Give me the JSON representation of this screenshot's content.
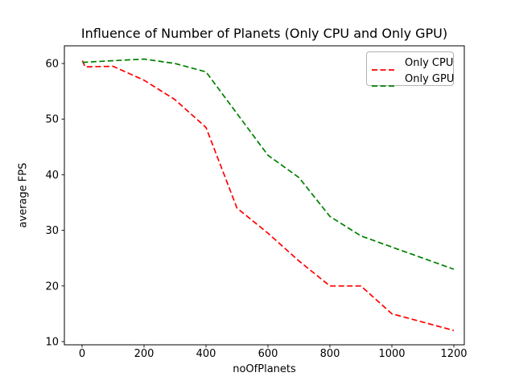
{
  "window": {
    "background": "#ffffff"
  },
  "chart_data": {
    "type": "line",
    "title": "Influence of Number of Planets (Only CPU and Only GPU)",
    "xlabel": "noOfPlanets",
    "ylabel": "average FPS",
    "x_ticks": [
      0,
      200,
      400,
      600,
      800,
      1000,
      1200
    ],
    "y_ticks": [
      10,
      20,
      30,
      40,
      50,
      60
    ],
    "xlim": [
      -57,
      1234
    ],
    "ylim": [
      9.4,
      63.2
    ],
    "grid": false,
    "legend": {
      "position": "upper right"
    },
    "series": [
      {
        "name": "Only CPU",
        "color": "#ff0000",
        "linestyle": "dashed",
        "x": [
          1,
          10,
          100,
          200,
          300,
          400,
          500,
          600,
          700,
          800,
          900,
          1000,
          1100,
          1200
        ],
        "y": [
          60.5,
          59.4,
          59.5,
          57,
          53.5,
          48.5,
          34,
          29.5,
          24.5,
          20,
          20,
          15,
          13.5,
          12
        ]
      },
      {
        "name": "Only GPU",
        "color": "#008000",
        "linestyle": "dashed",
        "x": [
          1,
          100,
          200,
          300,
          400,
          500,
          600,
          700,
          800,
          900,
          1000,
          1100,
          1200
        ],
        "y": [
          60.2,
          60.5,
          60.8,
          60,
          58.5,
          51,
          43.5,
          39.5,
          32.5,
          29,
          27,
          25,
          23
        ]
      }
    ]
  }
}
